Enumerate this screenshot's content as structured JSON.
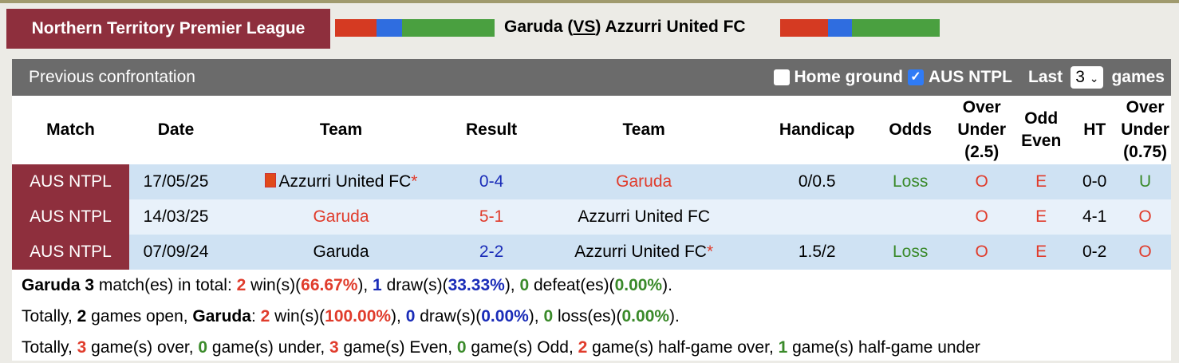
{
  "league": "Northern Territory Premier League",
  "matchup": {
    "home": "Garuda",
    "vs": "VS",
    "away": "Azzurri United FC"
  },
  "panel": {
    "title": "Previous confrontation",
    "home_ground": "Home ground",
    "league_filter": "AUS NTPL",
    "last": "Last",
    "count": "3",
    "games": "games",
    "home_ground_checked": false,
    "league_checked": true
  },
  "headers": [
    "Match",
    "Date",
    "Team",
    "Result",
    "Team",
    "Handicap",
    "Odds",
    "Over Under (2.5)",
    "Odd Even",
    "HT",
    "Over Under (0.75)"
  ],
  "rows": [
    {
      "match": "AUS NTPL",
      "date": "17/05/25",
      "home": "Azzurri United FC",
      "home_star": "*",
      "score": "0-4",
      "away": "Garuda",
      "away_star": "",
      "handicap": "0/0.5",
      "odds": "Loss",
      "ou": "O",
      "oe": "E",
      "ht": "0-0",
      "ou2": "U"
    },
    {
      "match": "AUS NTPL",
      "date": "14/03/25",
      "home": "Garuda",
      "home_star": "",
      "score": "5-1",
      "away": "Azzurri United FC",
      "away_star": "",
      "handicap": "",
      "odds": "",
      "ou": "O",
      "oe": "E",
      "ht": "4-1",
      "ou2": "O"
    },
    {
      "match": "AUS NTPL",
      "date": "07/09/24",
      "home": "Garuda",
      "home_star": "",
      "score": "2-2",
      "away": "Azzurri United FC",
      "away_star": "*",
      "handicap": "1.5/2",
      "odds": "Loss",
      "ou": "O",
      "oe": "E",
      "ht": "0-2",
      "ou2": "O"
    }
  ],
  "summary": {
    "l1": {
      "team": "Garuda",
      "n": "3",
      "a": " match(es) in total: ",
      "w": "2",
      "wp": "66.67%",
      "d": "1",
      "dp": "33.33%",
      "l": "0",
      "lp": "0.00%"
    },
    "l2": {
      "open": "2",
      "team": "Garuda",
      "w": "2",
      "wp": "100.00%",
      "d": "0",
      "dp": "0.00%",
      "l": "0",
      "lp": "0.00%"
    },
    "l3": {
      "over": "3",
      "under": "0",
      "even": "3",
      "odd": "0",
      "hgo": "2",
      "hgu": "1"
    }
  }
}
